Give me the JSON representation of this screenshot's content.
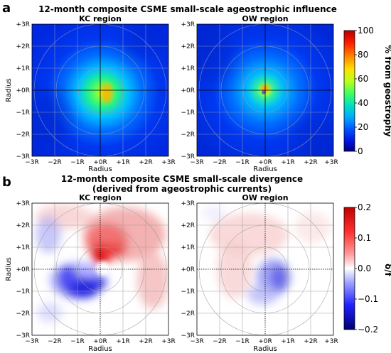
{
  "panel_a": {
    "letter": "a",
    "title": "12-month composite CSME small-scale ageostrophic influence",
    "regions": [
      "KC region",
      "OW region"
    ],
    "x_ticks": [
      "−3R",
      "−2R",
      "−1R",
      "+0R",
      "+1R",
      "+2R",
      "+3R"
    ],
    "y_ticks": [
      "+3R",
      "+2R",
      "+1R",
      "+0R",
      "−1R",
      "−2R",
      "−3R"
    ],
    "xlabel": "Radius",
    "ylabel": "Radius",
    "colorbar": {
      "label": "% from geostrophy",
      "ticks": [
        "100",
        "80",
        "60",
        "40",
        "20",
        "0"
      ],
      "colors": [
        "#b30000",
        "#ff1a00",
        "#ff8c00",
        "#ffe000",
        "#b8ff20",
        "#40ff60",
        "#00e0c0",
        "#00a8ff",
        "#0050ff",
        "#0010e0",
        "#000080"
      ]
    }
  },
  "panel_b": {
    "letter": "b",
    "title_line1": "12-month composite CSME small-scale divergence",
    "title_line2": "(derived from ageostrophic currents)",
    "regions": [
      "KC region",
      "OW region"
    ],
    "x_ticks": [
      "−3R",
      "−2R",
      "−1R",
      "+0R",
      "+1R",
      "+2R",
      "+3R"
    ],
    "y_ticks": [
      "+3R",
      "+2R",
      "+1R",
      "+0R",
      "−1R",
      "−2R",
      "−3R"
    ],
    "xlabel": "Radius",
    "ylabel": "Radius",
    "colorbar": {
      "label": "δ/f",
      "ticks": [
        "0.2",
        "0.1",
        "0.0",
        "−0.1",
        "−0.2"
      ],
      "colors": [
        "#c00000",
        "#ff3030",
        "#ff9a9a",
        "#ffffff",
        "#9aa0ff",
        "#2020ff",
        "#000070"
      ]
    }
  }
}
